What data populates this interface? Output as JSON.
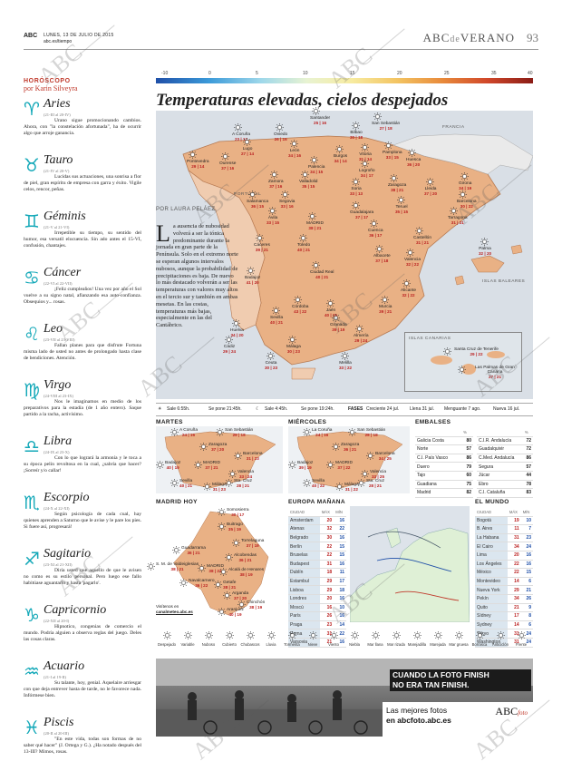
{
  "header": {
    "brand": "ABC",
    "date": "LUNES, 13 DE JULIO DE 2015",
    "site": "abc.es/tiempo",
    "section_a": "ABC",
    "section_b": "de",
    "section_c": "VERANO",
    "page": "93"
  },
  "horoscope": {
    "title": "HORÓSCOPO",
    "author": "por Karin Silveyra",
    "signs": [
      {
        "glyph": "♈",
        "name": "Aries",
        "dates": "(21-III al 20-IV)",
        "text": "Urano sigue promocionando cambios. Ahora, con \"la constelación afortunada\", ha de ocurrir algo que arroje ganancia."
      },
      {
        "glyph": "♉",
        "name": "Tauro",
        "dates": "(21-IV al 20-V)",
        "text": "Lucidas sus actuaciones, una sonrisa a flor de piel, gran espíritu de empresa con garra y éxito. Vigile celos, rencor, peñas."
      },
      {
        "glyph": "♊",
        "name": "Géminis",
        "dates": "(21-V al 21-VI)",
        "text": "Irrepetible su tiempo, su sentido del humor, esa versatil elocuencia. Sin ado antes el 15-VI, confusión, chantajes."
      },
      {
        "glyph": "♋",
        "name": "Cáncer",
        "dates": "(22-VI al 22-VII)",
        "text": "¡Feliz cumpleaños! Una vez por año el Sol vuelve a su signo natal, afianzando esa auto-confianza. Obsequios y... rosas."
      },
      {
        "glyph": "♌",
        "name": "Leo",
        "dates": "(23-VII al 23-VIII)",
        "text": "Fallan planes para que disfrute Fortuna misma lado de usted no antes de prolongado hasta clase de bendiciones. Atención."
      },
      {
        "glyph": "♍",
        "name": "Virgo",
        "dates": "(24-VIII al 23-IX)",
        "text": "Nos le imaginamos en medio de los preparativos para la estadía (de 1 año entero). Saque partido a la racha, activísimo."
      },
      {
        "glyph": "♎",
        "name": "Libra",
        "dates": "(24-IX al 23-X)",
        "text": "Con lo que logrará la armonía y le toca a su época pelin revoltosa en la cual, ¿sabría que hacer? ¡Sorreír y/o callar!"
      },
      {
        "glyph": "♏",
        "name": "Escorpio",
        "dates": "(24-X al 22-XI)",
        "text": "Según psicología de cada cual, hay quienes aprenden a Saturno que le avise y le pare los pies. Si fuere así, progresará!"
      },
      {
        "glyph": "♐",
        "name": "Sagitario",
        "dates": "(23-XI al 21-XII)",
        "text": "Diría usted que aquello de que le avisen no como es su estilo personal. Pero luego ese fallo habitúase aguantarlo y hasta 'pagarlo'."
      },
      {
        "glyph": "♑",
        "name": "Capricornio",
        "dates": "(22-XII al 20-I)",
        "text": "Hipnotico, congenias de comercio el mundo. Podría alguien a observa reglas del juego. Deles las cosas claras."
      },
      {
        "glyph": "♒",
        "name": "Acuario",
        "dates": "(21-I al 19-II)",
        "text": "Su talante, hoy, genial. Aquelaire arriesgar con que deja entrever hasta de tarde, no le favorece nada. Infórmese bien."
      },
      {
        "glyph": "♓",
        "name": "Piscis",
        "dates": "(20-II al 20-III)",
        "text": "\"En este vida, todas son formas de no saber qué hacer\" (J. Ortega y G.). ¿Ha notado después del 13-III? Mimos, rosas."
      }
    ]
  },
  "scale": {
    "ticks": [
      "-10",
      "0",
      "5",
      "10",
      "15",
      "20",
      "25",
      "35",
      "40"
    ]
  },
  "main": {
    "title": "Temperaturas elevadas, cielos despejados",
    "byline": "POR LAURA PELÁEZ",
    "dropcap": "L",
    "article": "a ausencia de nubosidad volverá a ser la tónica predominante durante la jornada en gran parte de la Península. Solo en el extremo norte se esperan algunos intervalos nubosos, aunque la probabilidad de precipitaciones es baja. De nuevo lo más destacado volverán a ser las temperaturas con valores muy altos en el tercio sur y también en ambas mesetas. En las costas, temperaturas más bajas, especialmente en las del Cantábrico.",
    "regions": {
      "francia": "FRANCIA",
      "portugal": "PORTUGAL",
      "baleares": "ISLAS BALEARES",
      "canarias": "ISLAS CANARIAS"
    },
    "cities": [
      {
        "n": "Santander",
        "t": "25 | 16"
      },
      {
        "n": "Oviedo",
        "t": "26 | 16"
      },
      {
        "n": "A Coruña",
        "t": "23 | 17"
      },
      {
        "n": "Bilbao",
        "t": "30 | 18"
      },
      {
        "n": "San Sebastián",
        "t": "27 | 18"
      },
      {
        "n": "Lugo",
        "t": "27 | 14"
      },
      {
        "n": "León",
        "t": "34 | 16"
      },
      {
        "n": "Palencia",
        "t": "34 | 15"
      },
      {
        "n": "Burgos",
        "t": "34 | 14"
      },
      {
        "n": "Vitoria",
        "t": "31 | 14"
      },
      {
        "n": "Pamplona",
        "t": "33 | 15"
      },
      {
        "n": "Huesca",
        "t": "36 | 20"
      },
      {
        "n": "Logroño",
        "t": "34 | 17"
      },
      {
        "n": "Ourense",
        "t": "37 | 16"
      },
      {
        "n": "Pontevedra",
        "t": "29 | 14"
      },
      {
        "n": "Zamora",
        "t": "37 | 16"
      },
      {
        "n": "Valladolid",
        "t": "35 | 15"
      },
      {
        "n": "Soria",
        "t": "33 | 13"
      },
      {
        "n": "Zaragoza",
        "t": "38 | 21"
      },
      {
        "n": "Lleida",
        "t": "37 | 20"
      },
      {
        "n": "Girona",
        "t": "34 | 19"
      },
      {
        "n": "Barcelona",
        "t": "30 | 22"
      },
      {
        "n": "Tarragona",
        "t": "31 | 21"
      },
      {
        "n": "Salamanca",
        "t": "36 | 15"
      },
      {
        "n": "Segovia",
        "t": "33 | 16"
      },
      {
        "n": "Guadalajara",
        "t": "37 | 17"
      },
      {
        "n": "Teruel",
        "t": "35 | 15"
      },
      {
        "n": "Ávila",
        "t": "33 | 15"
      },
      {
        "n": "MADRID",
        "t": "38 | 21"
      },
      {
        "n": "Cuenca",
        "t": "36 | 17"
      },
      {
        "n": "Castellón",
        "t": "31 | 21"
      },
      {
        "n": "Cáceres",
        "t": "39 | 21"
      },
      {
        "n": "Toledo",
        "t": "40 | 21"
      },
      {
        "n": "Valencia",
        "t": "32 | 22"
      },
      {
        "n": "Palma",
        "t": "32 | 20"
      },
      {
        "n": "Badajoz",
        "t": "41 | 20"
      },
      {
        "n": "Ciudad Real",
        "t": "40 | 21"
      },
      {
        "n": "Albacete",
        "t": "37 | 18"
      },
      {
        "n": "Alicante",
        "t": "32 | 22"
      },
      {
        "n": "Córdoba",
        "t": "43 | 22"
      },
      {
        "n": "Jaén",
        "t": "40 | 25"
      },
      {
        "n": "Murcia",
        "t": "39 | 21"
      },
      {
        "n": "Sevilla",
        "t": "40 | 21"
      },
      {
        "n": "Granada",
        "t": "39 | 19"
      },
      {
        "n": "Huelva",
        "t": "34 | 20"
      },
      {
        "n": "Almería",
        "t": "29 | 24"
      },
      {
        "n": "Cádiz",
        "t": "29 | 24"
      },
      {
        "n": "Málaga",
        "t": "30 | 23"
      },
      {
        "n": "Ceuta",
        "t": "30 | 23"
      },
      {
        "n": "Melilla",
        "t": "33 | 22"
      },
      {
        "n": "Santa Cruz de Tenerife",
        "t": "29 | 22"
      },
      {
        "n": "Las Palmas de Gran Canaria",
        "t": "27 | 21"
      }
    ]
  },
  "sunrow": {
    "sale": "Sale 6:55h.",
    "sepone": "Se pone 21:45h.",
    "luna_sale": "Sale 4:45h.",
    "luna_pone": "Se pone 19:24h.",
    "fases": "FASES",
    "creciente": "Creciente 24 jul.",
    "llena": "Llena 31 jul.",
    "menguante": "Menguante 7 ago.",
    "nueva": "Nueva 16 jul."
  },
  "martes": {
    "title": "MARTES",
    "cities": [
      {
        "n": "A Coruña",
        "t": "24 | 16"
      },
      {
        "n": "San Sebastián",
        "t": "28 | 18"
      },
      {
        "n": "Zaragoza",
        "t": "37 | 20"
      },
      {
        "n": "Badajoz",
        "t": "40 | 19"
      },
      {
        "n": "MADRID",
        "t": "37 | 21"
      },
      {
        "n": "Barcelona",
        "t": "31 | 23"
      },
      {
        "n": "Valencia",
        "t": "33 | 24"
      },
      {
        "n": "Sevilla",
        "t": "40 | 21"
      },
      {
        "n": "Málaga",
        "t": "31 | 23"
      },
      {
        "n": "Sta. Cruz",
        "t": "28 | 21"
      }
    ]
  },
  "miercoles": {
    "title": "MIÉRCOLES",
    "cities": [
      {
        "n": "La Coruña",
        "t": "24 | 16"
      },
      {
        "n": "San Sebastián",
        "t": "28 | 18"
      },
      {
        "n": "Zaragoza",
        "t": "36 | 21"
      },
      {
        "n": "Badajoz",
        "t": "39 | 19"
      },
      {
        "n": "MADRID",
        "t": "37 | 22"
      },
      {
        "n": "Barcelona",
        "t": "34 | 25"
      },
      {
        "n": "Valencia",
        "t": "33 | 25"
      },
      {
        "n": "Sevilla",
        "t": "40 | 22"
      },
      {
        "n": "Málaga",
        "t": "31 | 22"
      },
      {
        "n": "Sta. Cruz",
        "t": "28 | 21"
      }
    ]
  },
  "embalses": {
    "title": "EMBALSES",
    "col": "%",
    "left": [
      [
        "Galicia Costa",
        "80"
      ],
      [
        "Norte",
        "57"
      ],
      [
        "C.I. País Vasco",
        "86"
      ],
      [
        "Duero",
        "79"
      ],
      [
        "Tajo",
        "60"
      ],
      [
        "Guadiana",
        "75"
      ],
      [
        "Madrid",
        "82"
      ]
    ],
    "right": [
      [
        "C.I.R. Andalucía",
        "72"
      ],
      [
        "Guadalquivir",
        "72"
      ],
      [
        "C.Med. Andalucía",
        "86"
      ],
      [
        "Segura",
        "57"
      ],
      [
        "Júcar",
        "44"
      ],
      [
        "Ebro",
        "78"
      ],
      [
        "C.I. Cataluña",
        "83"
      ]
    ]
  },
  "madrid_hoy": {
    "title": "MADRID HOY",
    "cities": [
      {
        "n": "Somosierra",
        "t": "30 | 17"
      },
      {
        "n": "Buitrago",
        "t": "35 | 19"
      },
      {
        "n": "Torrelaguna",
        "t": "37 | 19"
      },
      {
        "n": "Alcobendas",
        "t": "36 | 21"
      },
      {
        "n": "Guadarrama",
        "t": "36 | 21"
      },
      {
        "n": "S. M. de Valdeiglesias",
        "t": "38 | 21"
      },
      {
        "n": "MADRID",
        "t": "38 | 21"
      },
      {
        "n": "Alcalá de Henares",
        "t": "38 | 19"
      },
      {
        "n": "Navalcarnero",
        "t": "36 | 22"
      },
      {
        "n": "Getafe",
        "t": "38 | 21"
      },
      {
        "n": "Arganda",
        "t": "37 | 20"
      },
      {
        "n": "Chinchón",
        "t": "38 | 19"
      },
      {
        "n": "Aranjuez",
        "t": "40 | 19"
      }
    ],
    "link": "Visítenos en",
    "url": "canalmeteo.abc.es"
  },
  "europa": {
    "title": "EUROPA MAÑANA",
    "h1": "CIUDAD",
    "h2": "MÁX",
    "h3": "MÍN",
    "rows": [
      [
        "Amsterdam",
        "20",
        "16"
      ],
      [
        "Atenas",
        "32",
        "22"
      ],
      [
        "Belgrado",
        "30",
        "16"
      ],
      [
        "Berlín",
        "22",
        "15"
      ],
      [
        "Bruselas",
        "22",
        "15"
      ],
      [
        "Budapest",
        "31",
        "16"
      ],
      [
        "Dublín",
        "18",
        "11"
      ],
      [
        "Estambul",
        "29",
        "17"
      ],
      [
        "Lisboa",
        "29",
        "18"
      ],
      [
        "Londres",
        "20",
        "16"
      ],
      [
        "Moscú",
        "16",
        "10"
      ],
      [
        "París",
        "26",
        "16"
      ],
      [
        "Praga",
        "23",
        "14"
      ],
      [
        "Roma",
        "31",
        "22"
      ],
      [
        "Varsovia",
        "21",
        "16"
      ]
    ]
  },
  "mundo": {
    "title": "EL MUNDO",
    "h1": "CIUDAD",
    "h2": "MÁX",
    "h3": "MÍN",
    "rows": [
      [
        "Bogotá",
        "19",
        "10"
      ],
      [
        "B. Aires",
        "11",
        "7"
      ],
      [
        "La Habana",
        "31",
        "23"
      ],
      [
        "El Cairo",
        "34",
        "24"
      ],
      [
        "Lima",
        "20",
        "16"
      ],
      [
        "Los Ángeles",
        "22",
        "16"
      ],
      [
        "México",
        "22",
        "15"
      ],
      [
        "Montevideo",
        "14",
        "6"
      ],
      [
        "Nueva York",
        "29",
        "21"
      ],
      [
        "Pekín",
        "34",
        "26"
      ],
      [
        "Quito",
        "21",
        "9"
      ],
      [
        "Sídney",
        "17",
        "8"
      ],
      [
        "Sydney",
        "14",
        "6"
      ],
      [
        "Tokyo",
        "31",
        "24"
      ],
      [
        "Washington",
        "31",
        "24"
      ]
    ]
  },
  "legend": {
    "items": [
      "Despejado",
      "Variable",
      "Nuboso",
      "Cubierto",
      "Chubascos",
      "Lluvia",
      "Tormenta",
      "Nieve",
      "Viento",
      "Niebla",
      "Mar llana",
      "Mar rizada",
      "Marejadilla",
      "Marejada",
      "Mar gruesa",
      "Borrasca",
      "Anticiclón",
      "Frente"
    ]
  },
  "photo": {
    "line1": "CUANDO LA FOTO FINISH",
    "line2": "NO ERA TAN FINISH.",
    "ad_a": "Las mejores fotos",
    "ad_b": "en abcfoto.abc.es",
    "logo": "ABC",
    "logo_sub": "foto"
  },
  "watermark": "ABC"
}
